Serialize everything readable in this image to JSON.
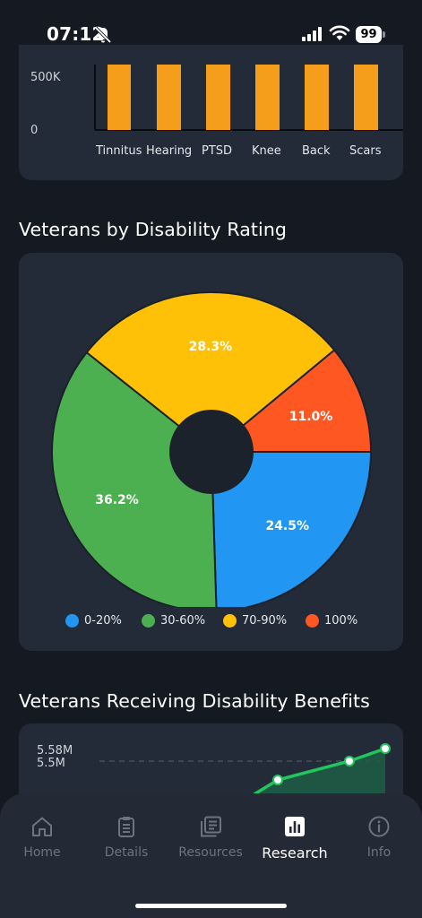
{
  "status_bar": {
    "time": "07:12",
    "battery": "99"
  },
  "bar_chart": {
    "y_ticks": [
      "500K",
      "0"
    ],
    "categories": [
      "Tinnitus",
      "Hearing",
      "PTSD",
      "Knee",
      "Back",
      "Scars"
    ],
    "bar_color": "#f59e1b"
  },
  "pie_section": {
    "title": "Veterans by Disability Rating"
  },
  "line_section": {
    "title": "Veterans Receiving Disability Benefits"
  },
  "chart_data": [
    {
      "type": "bar",
      "categories": [
        "Tinnitus",
        "Hearing",
        "PTSD",
        "Knee",
        "Back",
        "Scars"
      ],
      "ytick_labels": [
        "0",
        "500K"
      ]
    },
    {
      "type": "pie",
      "title": "Veterans by Disability Rating",
      "labels": [
        "0-20%",
        "30-60%",
        "70-90%",
        "100%"
      ],
      "values": [
        24.5,
        36.2,
        28.3,
        11.0
      ],
      "value_labels": [
        "24.5%",
        "36.2%",
        "28.3%",
        "11.0%"
      ],
      "colors": [
        "#2196f3",
        "#4caf50",
        "#ffc107",
        "#ff5722"
      ],
      "donut": true,
      "legend": "bottom"
    },
    {
      "type": "area",
      "title": "Veterans Receiving Disability Benefits",
      "ytick_labels": [
        "5.58M",
        "5.5M"
      ],
      "values": [
        5.46,
        5.52,
        5.55,
        5.58
      ],
      "color": "#22c55e"
    }
  ],
  "nav": {
    "items": [
      {
        "label": "Home",
        "icon": "home-icon"
      },
      {
        "label": "Details",
        "icon": "clipboard-icon"
      },
      {
        "label": "Resources",
        "icon": "library-icon"
      },
      {
        "label": "Research",
        "icon": "bar-chart-icon"
      },
      {
        "label": "Info",
        "icon": "info-icon"
      }
    ],
    "active": 3
  }
}
